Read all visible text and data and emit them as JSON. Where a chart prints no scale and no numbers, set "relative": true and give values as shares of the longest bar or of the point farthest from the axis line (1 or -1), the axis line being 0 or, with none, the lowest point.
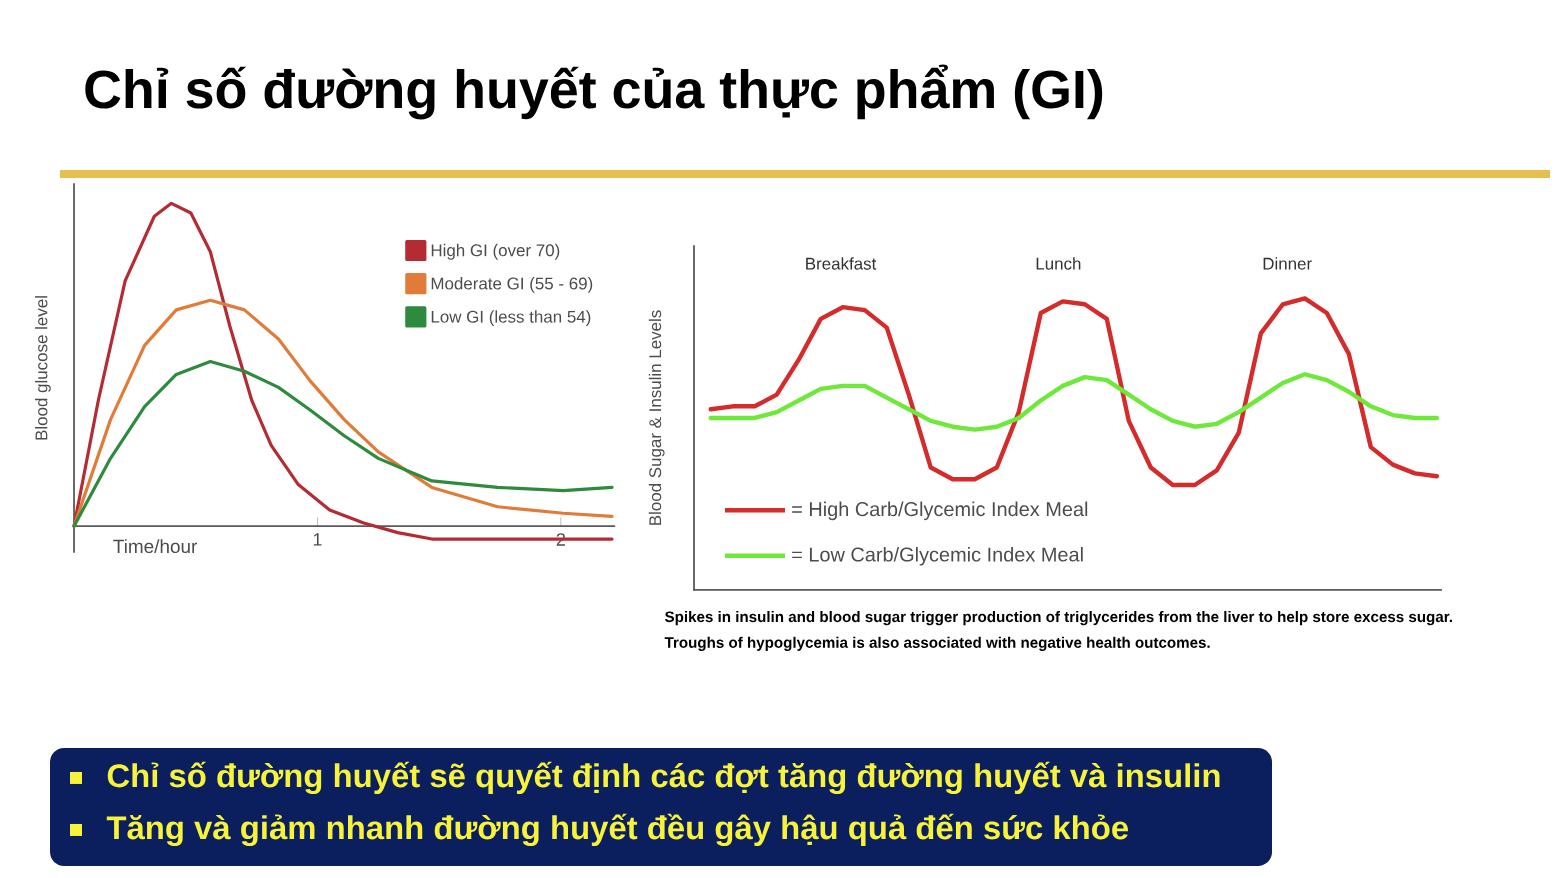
{
  "chart_data": [
    {
      "type": "other",
      "title": "Chỉ số đường huyết của thực phẩm (GI)",
      "annotations": [
        "Chỉ số đường huyết sẽ quyết định các đợt tăng đường huyết và insulin",
        "Tăng và giảm nhanh đường huyết đều gây hậu quả đến sức khỏe"
      ]
    },
    {
      "type": "line",
      "relative": true,
      "xlabel": "Time/hour",
      "ylabel": "Blood glucose level",
      "xlim": [
        0,
        2.22
      ],
      "xticks": [
        1,
        2
      ],
      "legend": "top right",
      "x": [
        0,
        0.1,
        0.21,
        0.33,
        0.4,
        0.48,
        0.56,
        0.64,
        0.73,
        0.81,
        0.92,
        1.05,
        1.19,
        1.33,
        1.47,
        1.74,
        2.21
      ],
      "series": [
        {
          "name": "High GI (over 70)",
          "color": "#b52b33",
          "values": [
            0,
            0.39,
            0.76,
            0.96,
            1.0,
            0.97,
            0.85,
            0.62,
            0.39,
            0.25,
            0.13,
            0.05,
            0.01,
            -0.02,
            -0.04,
            -0.04,
            -0.04
          ]
        },
        {
          "name": "Moderate GI (55 - 69)",
          "color": "#e07b39",
          "x": [
            0,
            0.15,
            0.29,
            0.42,
            0.56,
            0.7,
            0.84,
            0.97,
            1.11,
            1.25,
            1.47,
            1.74,
            2.01,
            2.21
          ],
          "values": [
            0,
            0.33,
            0.56,
            0.67,
            0.7,
            0.67,
            0.58,
            0.45,
            0.33,
            0.23,
            0.12,
            0.06,
            0.04,
            0.03
          ]
        },
        {
          "name": "Low GI (less than 54)",
          "color": "#2e8b3e",
          "x": [
            0,
            0.15,
            0.29,
            0.42,
            0.56,
            0.7,
            0.84,
            0.97,
            1.11,
            1.25,
            1.47,
            1.74,
            2.01,
            2.21
          ],
          "values": [
            0,
            0.21,
            0.37,
            0.47,
            0.51,
            0.48,
            0.43,
            0.36,
            0.28,
            0.21,
            0.14,
            0.12,
            0.11,
            0.12
          ]
        }
      ]
    },
    {
      "type": "line",
      "relative": true,
      "ylabel": "Blood Sugar & Insulin Levels",
      "legend": "bottom left",
      "categories": [
        null,
        null,
        null,
        null,
        null,
        null,
        null,
        null,
        null,
        null,
        null,
        null,
        null,
        null,
        null,
        null,
        null,
        null,
        null,
        null,
        null,
        null,
        null,
        null,
        null,
        null,
        null,
        null,
        null,
        null,
        null,
        null,
        null,
        null
      ],
      "series": [
        {
          "name": "= High Carb/Glycemic Index Meal",
          "color": "#d42b2b",
          "values": [
            0.62,
            0.63,
            0.63,
            0.67,
            0.79,
            0.93,
            0.97,
            0.96,
            0.9,
            0.67,
            0.42,
            0.38,
            0.38,
            0.42,
            0.61,
            0.95,
            0.99,
            0.98,
            0.93,
            0.58,
            0.42,
            0.36,
            0.36,
            0.41,
            0.54,
            0.88,
            0.98,
            1.0,
            0.95,
            0.81,
            0.49,
            0.43,
            0.4,
            0.39
          ]
        },
        {
          "name": "= Low Carb/Glycemic Index Meal",
          "color": "#6ee83a",
          "values": [
            0.59,
            0.59,
            0.59,
            0.61,
            0.65,
            0.69,
            0.7,
            0.7,
            0.66,
            0.62,
            0.58,
            0.56,
            0.55,
            0.56,
            0.59,
            0.65,
            0.7,
            0.73,
            0.72,
            0.67,
            0.62,
            0.58,
            0.56,
            0.57,
            0.61,
            0.66,
            0.71,
            0.74,
            0.72,
            0.68,
            0.63,
            0.6,
            0.59,
            0.59
          ]
        }
      ],
      "annotations": [
        "Breakfast",
        "Lunch",
        "Dinner",
        "Spikes in insulin and blood sugar trigger production of triglycerides from the liver to help store excess sugar.",
        "Troughs of hypoglycemia is also associated with negative health outcomes."
      ]
    }
  ]
}
